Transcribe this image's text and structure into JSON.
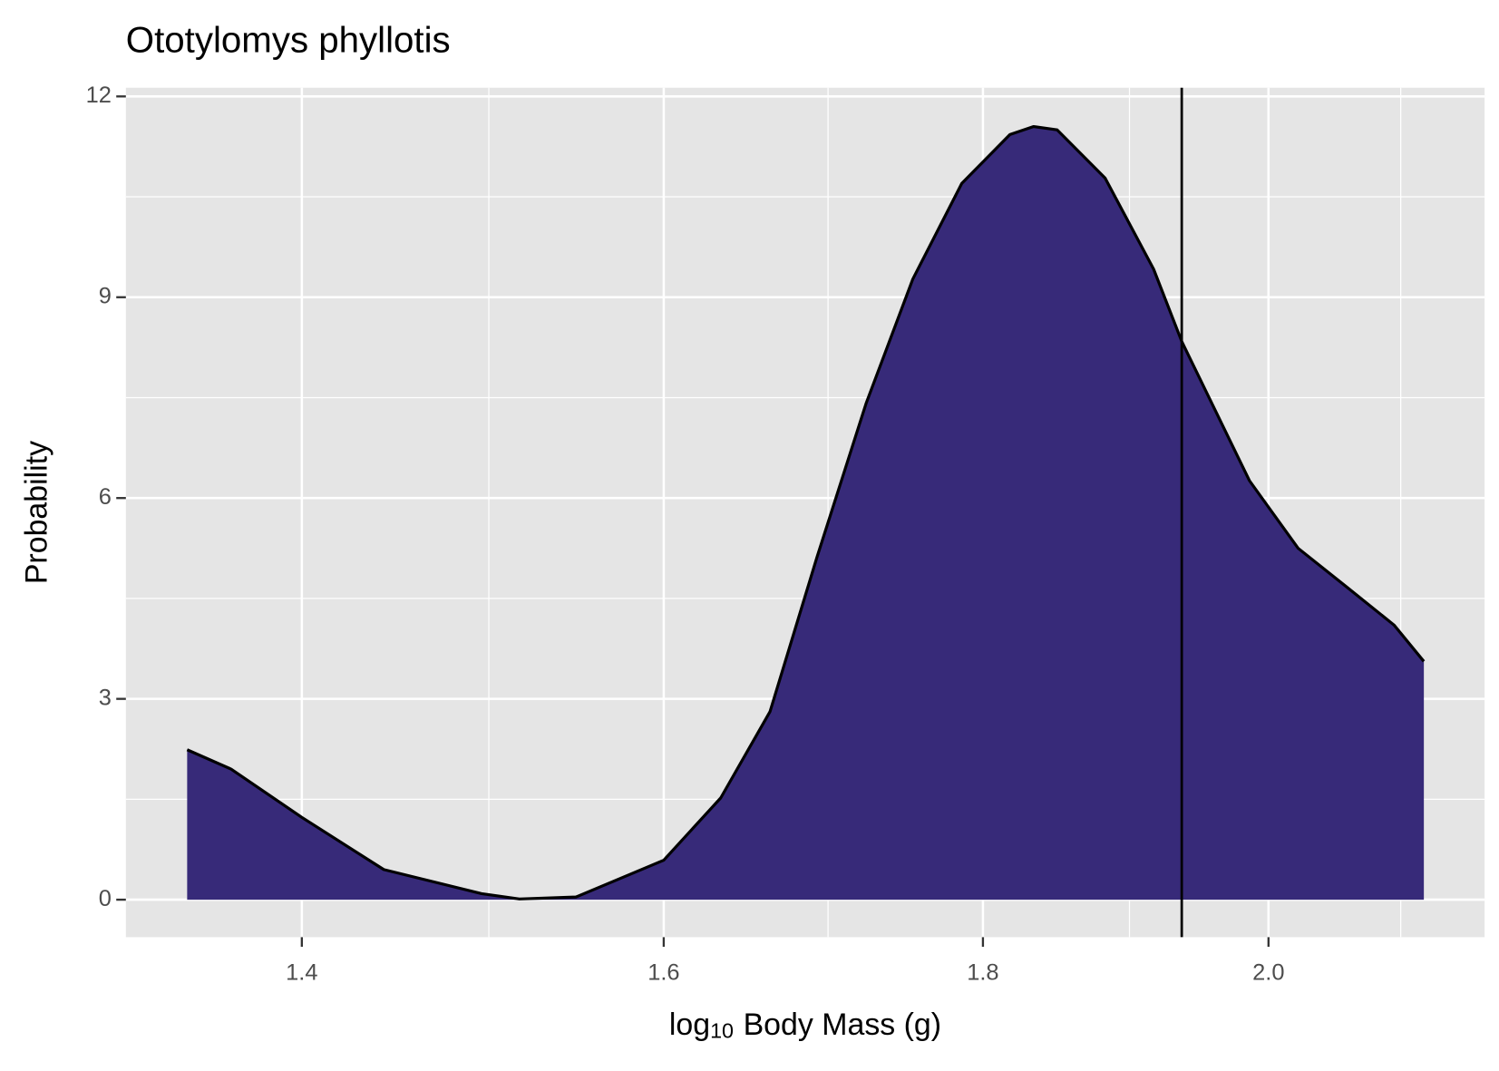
{
  "chart_data": {
    "type": "density",
    "title": "Ototylomys phyllotis",
    "x_label": {
      "base": "log",
      "subscript": "10",
      "rest": "Body Mass (g)"
    },
    "y_label": "Probability",
    "xlog": true,
    "x": [
      1.342,
      1.364,
      1.4,
      1.443,
      1.496,
      1.517,
      1.549,
      1.6,
      1.634,
      1.664,
      1.693,
      1.724,
      1.754,
      1.786,
      1.818,
      1.834,
      1.85,
      1.883,
      1.917,
      1.937,
      1.986,
      2.022,
      2.058,
      2.095,
      2.118
    ],
    "values": [
      2.24,
      1.95,
      1.23,
      0.45,
      0.09,
      0.01,
      0.04,
      0.59,
      1.52,
      2.81,
      5.11,
      7.41,
      9.27,
      10.7,
      11.43,
      11.55,
      11.5,
      10.78,
      9.42,
      8.34,
      6.26,
      5.25,
      4.68,
      4.1,
      3.56
    ],
    "color": "#372a79",
    "vline": 1.937,
    "xlim": [
      1.312,
      2.166
    ],
    "ylim": [
      -0.56,
      12.13
    ],
    "xticks": [
      1.4,
      1.6,
      1.8,
      {
        "value": 2,
        "label": "2.0"
      }
    ],
    "yticks": [
      0,
      3,
      6,
      9,
      12
    ],
    "xminor": [
      1.5,
      1.7,
      1.9,
      2.1
    ],
    "yminor": [
      1.5,
      4.5,
      7.5,
      10.5
    ],
    "grid": true
  }
}
